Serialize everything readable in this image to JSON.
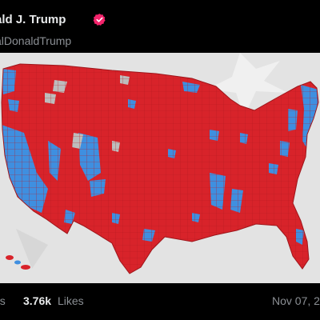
{
  "post": {
    "author_name": "ald J. Trump",
    "author_handle": "alDonaldTrump",
    "verified_icon": "verified-badge-icon",
    "media_description_icon": "us-county-election-map-image",
    "views_label_fragment": "hs",
    "likes_count": "3.76k",
    "likes_label": "Likes",
    "date_fragment": "Nov 07, 2"
  },
  "colors": {
    "background": "#000000",
    "verified_badge": "#f4246c",
    "map_red": "#d8232a",
    "map_blue": "#3f8fe0",
    "secondary_text": "#8b8f94"
  }
}
